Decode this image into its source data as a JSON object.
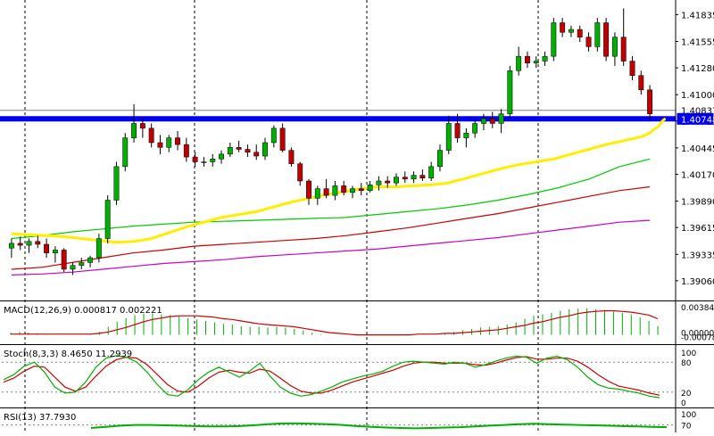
{
  "chart_data": {
    "type": "candlestick",
    "colors": {
      "up": "#00b000",
      "down": "#c00000",
      "wick": "#000000",
      "ma_fast": "#ffee00",
      "ma_mid": "#00cc00",
      "ma_slow": "#cc0000",
      "ma_long": "#cc00cc",
      "support_line": "#0000ee",
      "price_line": "#808080",
      "macd_hist": "#00b000",
      "macd_signal": "#cc0000",
      "stoch_main": "#00b000",
      "stoch_signal": "#cc0000",
      "rsi": "#00b000",
      "grid": "#000000"
    },
    "main": {
      "ylim": [
        1.3891,
        1.4195
      ],
      "y_ticks": [
        "1.41835",
        "1.41555",
        "1.41280",
        "1.41000",
        "1.40725",
        "1.40445",
        "1.40170",
        "1.39890",
        "1.39615",
        "1.39335",
        "1.39060"
      ],
      "price_labels": {
        "current": "1.40837",
        "support": "1.40748"
      },
      "support_level": 1.40748,
      "current_price": 1.40837,
      "candles": [
        [
          1.394,
          1.395,
          1.393,
          1.3945
        ],
        [
          1.3945,
          1.3952,
          1.3938,
          1.3943
        ],
        [
          1.3943,
          1.395,
          1.3935,
          1.3947
        ],
        [
          1.3947,
          1.3953,
          1.394,
          1.3944
        ],
        [
          1.3944,
          1.395,
          1.393,
          1.3935
        ],
        [
          1.3935,
          1.3942,
          1.3925,
          1.3938
        ],
        [
          1.3938,
          1.394,
          1.3915,
          1.3918
        ],
        [
          1.3918,
          1.3925,
          1.3912,
          1.3922
        ],
        [
          1.3922,
          1.393,
          1.3918,
          1.3925
        ],
        [
          1.3925,
          1.3932,
          1.392,
          1.393
        ],
        [
          1.393,
          1.3955,
          1.3925,
          1.395
        ],
        [
          1.395,
          1.3995,
          1.3945,
          1.399
        ],
        [
          1.399,
          1.403,
          1.3985,
          1.4025
        ],
        [
          1.4025,
          1.406,
          1.402,
          1.4055
        ],
        [
          1.4055,
          1.409,
          1.405,
          1.407
        ],
        [
          1.407,
          1.4075,
          1.4055,
          1.4065
        ],
        [
          1.4065,
          1.407,
          1.4045,
          1.405
        ],
        [
          1.405,
          1.4058,
          1.4038,
          1.4045
        ],
        [
          1.4045,
          1.4058,
          1.404,
          1.4055
        ],
        [
          1.4055,
          1.4062,
          1.4042,
          1.4048
        ],
        [
          1.4048,
          1.4055,
          1.403,
          1.4035
        ],
        [
          1.4035,
          1.404,
          1.4025,
          1.403
        ],
        [
          1.403,
          1.4035,
          1.4025,
          1.403
        ],
        [
          1.403,
          1.4038,
          1.4025,
          1.4033
        ],
        [
          1.4033,
          1.4042,
          1.4028,
          1.4038
        ],
        [
          1.4038,
          1.405,
          1.4035,
          1.4045
        ],
        [
          1.4045,
          1.4052,
          1.404,
          1.4043
        ],
        [
          1.4043,
          1.4048,
          1.4035,
          1.404
        ],
        [
          1.404,
          1.4048,
          1.4032,
          1.4036
        ],
        [
          1.4036,
          1.4055,
          1.4032,
          1.405
        ],
        [
          1.405,
          1.4068,
          1.4045,
          1.4065
        ],
        [
          1.4065,
          1.407,
          1.404,
          1.4042
        ],
        [
          1.4042,
          1.4045,
          1.4025,
          1.4028
        ],
        [
          1.4028,
          1.403,
          1.4005,
          1.401
        ],
        [
          1.401,
          1.4012,
          1.3985,
          1.3992
        ],
        [
          1.3992,
          1.4005,
          1.3985,
          1.4002
        ],
        [
          1.4002,
          1.4012,
          1.3992,
          1.3995
        ],
        [
          1.3995,
          1.401,
          1.399,
          1.4005
        ],
        [
          1.4005,
          1.401,
          1.3995,
          1.3998
        ],
        [
          1.3998,
          1.4005,
          1.3992,
          1.4002
        ],
        [
          1.4002,
          1.4008,
          1.3995,
          1.4
        ],
        [
          1.4,
          1.401,
          1.3998,
          1.4006
        ],
        [
          1.4006,
          1.4015,
          1.4,
          1.401
        ],
        [
          1.401,
          1.4015,
          1.4003,
          1.4008
        ],
        [
          1.4008,
          1.4018,
          1.4005,
          1.4014
        ],
        [
          1.4014,
          1.402,
          1.4008,
          1.4012
        ],
        [
          1.4012,
          1.402,
          1.4008,
          1.4016
        ],
        [
          1.4016,
          1.4022,
          1.401,
          1.4013
        ],
        [
          1.4013,
          1.403,
          1.401,
          1.4025
        ],
        [
          1.4025,
          1.4048,
          1.402,
          1.4042
        ],
        [
          1.4042,
          1.4078,
          1.4038,
          1.407
        ],
        [
          1.407,
          1.408,
          1.405,
          1.4055
        ],
        [
          1.4055,
          1.4065,
          1.4045,
          1.406
        ],
        [
          1.406,
          1.4075,
          1.4055,
          1.407
        ],
        [
          1.407,
          1.408,
          1.4063,
          1.4075
        ],
        [
          1.4075,
          1.4082,
          1.4065,
          1.407
        ],
        [
          1.407,
          1.4085,
          1.406,
          1.408
        ],
        [
          1.408,
          1.413,
          1.4075,
          1.4125
        ],
        [
          1.4125,
          1.415,
          1.412,
          1.414
        ],
        [
          1.414,
          1.4145,
          1.4128,
          1.4133
        ],
        [
          1.4133,
          1.414,
          1.4128,
          1.4135
        ],
        [
          1.4135,
          1.4145,
          1.413,
          1.414
        ],
        [
          1.414,
          1.418,
          1.4135,
          1.4175
        ],
        [
          1.4175,
          1.418,
          1.416,
          1.4165
        ],
        [
          1.4165,
          1.4172,
          1.416,
          1.4168
        ],
        [
          1.4168,
          1.4172,
          1.4155,
          1.416
        ],
        [
          1.416,
          1.4165,
          1.4145,
          1.415
        ],
        [
          1.415,
          1.418,
          1.4145,
          1.4175
        ],
        [
          1.4175,
          1.418,
          1.4135,
          1.414
        ],
        [
          1.414,
          1.4165,
          1.413,
          1.416
        ],
        [
          1.416,
          1.419,
          1.413,
          1.4135
        ],
        [
          1.4135,
          1.414,
          1.4115,
          1.412
        ],
        [
          1.412,
          1.4125,
          1.41,
          1.4105
        ],
        [
          1.4105,
          1.411,
          1.4074,
          1.408
        ]
      ],
      "ma_fast": [
        1.3955,
        1.3954,
        1.3953,
        1.3952,
        1.395,
        1.3948,
        1.3946,
        1.3947,
        1.395,
        1.3956,
        1.3962,
        1.3967,
        1.3972,
        1.3975,
        1.3978,
        1.3983,
        1.3988,
        1.3992,
        1.3996,
        1.3999,
        1.4002,
        1.4004,
        1.4004,
        1.4005,
        1.4006,
        1.4008,
        1.4013,
        1.4018,
        1.4023,
        1.4027,
        1.403,
        1.4033,
        1.4038,
        1.4043,
        1.4048,
        1.4052,
        1.4056,
        1.406,
        1.4064,
        1.4067,
        1.407,
        1.4072,
        1.4074,
        1.4075
      ],
      "ma_fast_x": [
        0,
        2,
        4,
        6,
        8,
        10,
        12,
        14,
        16,
        18,
        20,
        22,
        24,
        26,
        28,
        30,
        32,
        34,
        36,
        38,
        40,
        42,
        44,
        46,
        48,
        50,
        52,
        54,
        56,
        58,
        60,
        62,
        64,
        66,
        68,
        70,
        72,
        73,
        73.5,
        74,
        74.2,
        74.4,
        74.6,
        74.8
      ],
      "ma_mid": [
        1.395,
        1.3953,
        1.3957,
        1.396,
        1.3963,
        1.3965,
        1.3967,
        1.3968,
        1.3969,
        1.397,
        1.3971,
        1.3972,
        1.3975,
        1.3978,
        1.3981,
        1.3985,
        1.399,
        1.3996,
        1.4003,
        1.4012,
        1.4025,
        1.4033
      ],
      "ma_slow": [
        1.3918,
        1.392,
        1.3925,
        1.393,
        1.3935,
        1.3938,
        1.3942,
        1.3944,
        1.3946,
        1.3948,
        1.395,
        1.3953,
        1.3957,
        1.3961,
        1.3966,
        1.3971,
        1.3976,
        1.3982,
        1.3988,
        1.3994,
        1.4,
        1.4004
      ],
      "ma_long": [
        1.3912,
        1.3913,
        1.3915,
        1.3918,
        1.3921,
        1.3924,
        1.3926,
        1.3928,
        1.3931,
        1.3933,
        1.3935,
        1.3937,
        1.3939,
        1.3942,
        1.3945,
        1.3948,
        1.3951,
        1.3955,
        1.3959,
        1.3963,
        1.3967,
        1.3969
      ]
    },
    "macd": {
      "label": "MACD(12,26,9) 0.000817 0.002221",
      "y_ticks": [
        "0.003842",
        "0.000000",
        "-0.000784"
      ],
      "ylim": [
        -0.000784,
        0.003842
      ],
      "hist": [
        0.0003,
        0.0004,
        0.0003,
        0.0002,
        0.0001,
        0.0,
        0.0,
        0.0,
        0.0,
        0.0001,
        0.0004,
        0.0011,
        0.0018,
        0.0023,
        0.0027,
        0.0029,
        0.0029,
        0.0028,
        0.0027,
        0.0025,
        0.0023,
        0.0021,
        0.0019,
        0.0017,
        0.0015,
        0.0014,
        0.0012,
        0.0011,
        0.0011,
        0.001,
        0.0011,
        0.001,
        0.0008,
        0.0006,
        0.0003,
        0.0001,
        0.0,
        0.0,
        0.0,
        0.0,
        0.0,
        0.0,
        0.0,
        0.0,
        0.0,
        0.0,
        0.0,
        0.0,
        0.0,
        0.0002,
        0.0004,
        0.0006,
        0.0008,
        0.001,
        0.0011,
        0.0012,
        0.0014,
        0.0017,
        0.0022,
        0.0026,
        0.0028,
        0.003,
        0.0033,
        0.0035,
        0.0036,
        0.0036,
        0.0035,
        0.0034,
        0.0032,
        0.003,
        0.0028,
        0.0024,
        0.0019,
        0.0012
      ],
      "signal": [
        0.0001,
        0.0001,
        0.0001,
        0.0001,
        0.0001,
        0.0001,
        0.0001,
        0.0001,
        0.0001,
        0.0001,
        0.0002,
        0.0004,
        0.0007,
        0.001,
        0.0014,
        0.0018,
        0.0021,
        0.0023,
        0.0025,
        0.0026,
        0.0026,
        0.0026,
        0.0025,
        0.0024,
        0.0022,
        0.0021,
        0.0019,
        0.0017,
        0.0015,
        0.0014,
        0.0013,
        0.0012,
        0.0011,
        0.0009,
        0.0007,
        0.0005,
        0.0003,
        0.0002,
        0.0001,
        0.0,
        0.0,
        0.0,
        0.0,
        0.0,
        0.0,
        0.0,
        0.0001,
        0.0001,
        0.0001,
        0.0002,
        0.0002,
        0.0003,
        0.0004,
        0.0005,
        0.0006,
        0.0007,
        0.0009,
        0.0011,
        0.0013,
        0.0016,
        0.0018,
        0.0021,
        0.0024,
        0.0026,
        0.0029,
        0.0031,
        0.0032,
        0.0033,
        0.0033,
        0.0032,
        0.0031,
        0.0029,
        0.0027,
        0.0022
      ]
    },
    "stoch": {
      "label": "Stoch(8,3,3) 8.4650 11.2939",
      "y_ticks": [
        "100",
        "80",
        "20",
        "0"
      ],
      "ylim": [
        0,
        100
      ],
      "main": [
        45,
        55,
        72,
        80,
        60,
        30,
        18,
        20,
        40,
        70,
        88,
        93,
        90,
        80,
        60,
        35,
        15,
        12,
        25,
        45,
        60,
        70,
        60,
        50,
        62,
        78,
        52,
        30,
        18,
        12,
        15,
        22,
        30,
        40,
        46,
        52,
        56,
        62,
        72,
        80,
        82,
        80,
        78,
        76,
        80,
        78,
        70,
        75,
        82,
        88,
        92,
        90,
        78,
        88,
        92,
        85,
        70,
        50,
        35,
        28,
        26,
        22,
        18,
        12,
        9
      ],
      "signal": [
        40,
        48,
        62,
        72,
        70,
        50,
        30,
        22,
        30,
        52,
        72,
        85,
        90,
        88,
        75,
        55,
        35,
        22,
        20,
        32,
        48,
        60,
        64,
        60,
        58,
        66,
        62,
        48,
        33,
        22,
        18,
        18,
        24,
        32,
        40,
        46,
        52,
        58,
        64,
        72,
        78,
        80,
        80,
        78,
        78,
        78,
        75,
        74,
        78,
        84,
        89,
        91,
        86,
        86,
        88,
        88,
        82,
        70,
        55,
        42,
        32,
        28,
        24,
        18,
        14
      ]
    },
    "rsi": {
      "label": "RSI(13) 37.7930",
      "y_ticks": [
        "100",
        "70"
      ],
      "ylim": [
        0,
        100
      ],
      "values": [
        62,
        65,
        68,
        70,
        70,
        69,
        68,
        67,
        66,
        66,
        67,
        69,
        72,
        74,
        74,
        73,
        72,
        70,
        67,
        65,
        63,
        62,
        61,
        62,
        63,
        64,
        66,
        68,
        70,
        72,
        73,
        72,
        71,
        70,
        69,
        68,
        67,
        66,
        65,
        64
      ]
    }
  }
}
